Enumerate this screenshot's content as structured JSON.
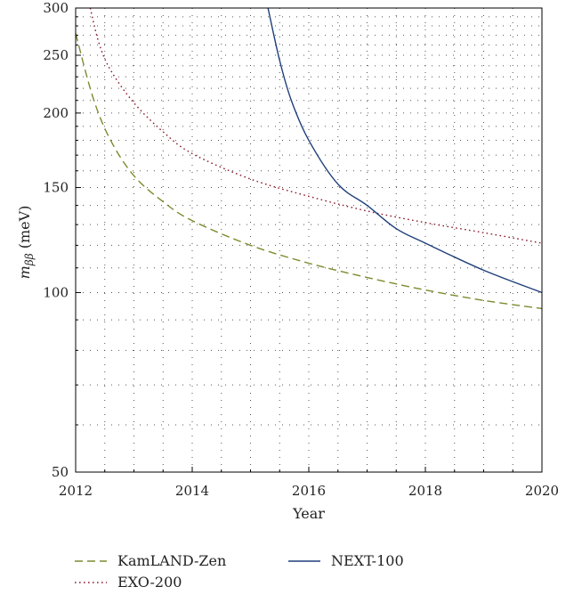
{
  "chart_data": {
    "type": "line",
    "xlabel": "Year",
    "ylabel_main": "m",
    "ylabel_sub": "ββ",
    "ylabel_unit": " (meV)",
    "xlim": [
      2012,
      2020
    ],
    "ylim": [
      50,
      300
    ],
    "y_scale": "log",
    "x_ticks": [
      "2012",
      "2014",
      "2016",
      "2018",
      "2020"
    ],
    "x_tick_values": [
      2012,
      2014,
      2016,
      2018,
      2020
    ],
    "y_ticks": [
      "50",
      "100",
      "150",
      "200",
      "250",
      "300"
    ],
    "y_tick_values": [
      50,
      100,
      150,
      200,
      250,
      300
    ],
    "grid": true,
    "legend_position": "bottom",
    "series": [
      {
        "name": "KamLAND-Zen",
        "color": "#7a8c2e",
        "style": "dashed",
        "x": [
          2012.0,
          2012.3,
          2012.6,
          2013.0,
          2013.5,
          2014.0,
          2015.0,
          2016.0,
          2017.0,
          2018.0,
          2019.0,
          2020.0
        ],
        "y": [
          272,
          212,
          180,
          157,
          142,
          132,
          120,
          112,
          106,
          101,
          97,
          94
        ]
      },
      {
        "name": "EXO-200",
        "color": "#8b1a2b",
        "style": "dotted",
        "x": [
          2012.25,
          2012.4,
          2012.6,
          2013.0,
          2013.5,
          2014.0,
          2015.0,
          2016.0,
          2017.0,
          2018.0,
          2019.0,
          2020.0
        ],
        "y": [
          300,
          262,
          236,
          208,
          186,
          171,
          155,
          145,
          137,
          131,
          126,
          121
        ]
      },
      {
        "name": "NEXT-100",
        "color": "#1f3f7a",
        "style": "solid",
        "x": [
          2015.3,
          2015.5,
          2015.7,
          2016.0,
          2016.5,
          2017.0,
          2017.5,
          2018.0,
          2019.0,
          2020.0
        ],
        "y": [
          300,
          245,
          210,
          180,
          152,
          140,
          128,
          121,
          109,
          100
        ]
      }
    ]
  }
}
